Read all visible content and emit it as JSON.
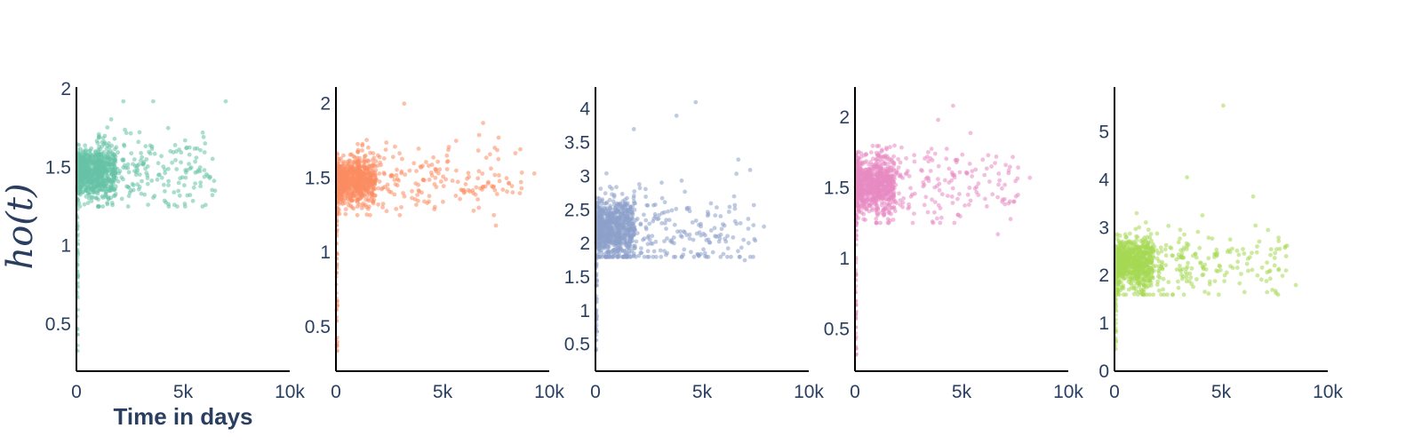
{
  "chart_data": {
    "type": "scatter",
    "ylabel": "ho(t)",
    "xlabel": "Time in days",
    "panels": [
      {
        "color": "#66c2a5",
        "xlim": [
          0,
          10000
        ],
        "ylim": [
          0.2,
          2.0
        ],
        "x_ticks": [
          {
            "value": 0,
            "label": "0"
          },
          {
            "value": 5000,
            "label": "5k"
          },
          {
            "value": 10000,
            "label": "10k"
          }
        ],
        "y_ticks": [
          {
            "value": 0.5,
            "label": "0.5"
          },
          {
            "value": 1,
            "label": "1"
          },
          {
            "value": 1.5,
            "label": "1.5"
          },
          {
            "value": 2,
            "label": "2"
          }
        ],
        "cluster": {
          "center": 1.47,
          "spread": 0.1,
          "min": 1.25,
          "max": 1.92,
          "max_x": 7000
        },
        "outliers": [
          [
            7000,
            1.92
          ],
          [
            6500,
            1.35
          ],
          [
            5300,
            1.58
          ],
          [
            4300,
            1.75
          ],
          [
            3600,
            1.92
          ],
          [
            2200,
            1.92
          ],
          [
            4600,
            1.26
          ]
        ],
        "base": 0.3
      },
      {
        "color": "#fc8d62",
        "xlim": [
          0,
          10000
        ],
        "ylim": [
          0.2,
          2.1
        ],
        "x_ticks": [
          {
            "value": 0,
            "label": "0"
          },
          {
            "value": 5000,
            "label": "5k"
          },
          {
            "value": 10000,
            "label": "10k"
          }
        ],
        "y_ticks": [
          {
            "value": 0.5,
            "label": "0.5"
          },
          {
            "value": 1,
            "label": "1"
          },
          {
            "value": 1.5,
            "label": "1.5"
          },
          {
            "value": 2,
            "label": "2"
          }
        ],
        "cluster": {
          "center": 1.48,
          "spread": 0.1,
          "min": 1.25,
          "max": 2.0,
          "max_x": 9300
        },
        "outliers": [
          [
            9300,
            1.53
          ],
          [
            8700,
            1.43
          ],
          [
            7500,
            1.18
          ],
          [
            6900,
            1.87
          ],
          [
            6700,
            1.3
          ],
          [
            6000,
            1.4
          ],
          [
            3200,
            2.0
          ],
          [
            5200,
            1.65
          ]
        ],
        "base": 0.3
      },
      {
        "color": "#8da0cb",
        "xlim": [
          0,
          10000
        ],
        "ylim": [
          0.1,
          4.3
        ],
        "x_ticks": [
          {
            "value": 0,
            "label": "0"
          },
          {
            "value": 5000,
            "label": "5k"
          },
          {
            "value": 10000,
            "label": "10k"
          }
        ],
        "y_ticks": [
          {
            "value": 0.5,
            "label": "0.5"
          },
          {
            "value": 1,
            "label": "1"
          },
          {
            "value": 1.5,
            "label": "1.5"
          },
          {
            "value": 2,
            "label": "2"
          },
          {
            "value": 2.5,
            "label": "2.5"
          },
          {
            "value": 3,
            "label": "3"
          },
          {
            "value": 3.5,
            "label": "3.5"
          },
          {
            "value": 4,
            "label": "4"
          }
        ],
        "cluster": {
          "center": 2.2,
          "spread": 0.28,
          "min": 1.8,
          "max": 3.4,
          "max_x": 8000
        },
        "outliers": [
          [
            4700,
            4.1
          ],
          [
            3800,
            3.9
          ],
          [
            1800,
            3.7
          ],
          [
            7900,
            2.25
          ],
          [
            7000,
            1.75
          ],
          [
            6500,
            2.7
          ],
          [
            6800,
            2.3
          ],
          [
            5200,
            2.05
          ]
        ],
        "base": 0.4
      },
      {
        "color": "#e78ac3",
        "xlim": [
          0,
          10000
        ],
        "ylim": [
          0.2,
          2.2
        ],
        "x_ticks": [
          {
            "value": 0,
            "label": "0"
          },
          {
            "value": 5000,
            "label": "5k"
          },
          {
            "value": 10000,
            "label": "10k"
          }
        ],
        "y_ticks": [
          {
            "value": 0.5,
            "label": "0.5"
          },
          {
            "value": 1,
            "label": "1"
          },
          {
            "value": 1.5,
            "label": "1.5"
          },
          {
            "value": 2,
            "label": "2"
          }
        ],
        "cluster": {
          "center": 1.52,
          "spread": 0.12,
          "min": 1.25,
          "max": 2.1,
          "max_x": 8200
        },
        "outliers": [
          [
            8200,
            1.57
          ],
          [
            6700,
            1.17
          ],
          [
            6400,
            1.65
          ],
          [
            6900,
            1.4
          ],
          [
            4600,
            2.08
          ],
          [
            3900,
            1.98
          ],
          [
            5300,
            1.45
          ]
        ],
        "base": 0.3
      },
      {
        "color": "#a6d854",
        "xlim": [
          0,
          10000
        ],
        "ylim": [
          0,
          5.9
        ],
        "x_ticks": [
          {
            "value": 0,
            "label": "0"
          },
          {
            "value": 5000,
            "label": "5k"
          },
          {
            "value": 10000,
            "label": "10k"
          }
        ],
        "y_ticks": [
          {
            "value": 0,
            "label": "0"
          },
          {
            "value": 1,
            "label": "1"
          },
          {
            "value": 2,
            "label": "2"
          },
          {
            "value": 3,
            "label": "3"
          },
          {
            "value": 4,
            "label": "4"
          },
          {
            "value": 5,
            "label": "5"
          }
        ],
        "cluster": {
          "center": 2.25,
          "spread": 0.3,
          "min": 1.6,
          "max": 3.5,
          "max_x": 8600
        },
        "outliers": [
          [
            5100,
            5.55
          ],
          [
            3400,
            4.05
          ],
          [
            6500,
            3.65
          ],
          [
            7200,
            2.95
          ],
          [
            7600,
            2.55
          ],
          [
            8500,
            1.8
          ],
          [
            7400,
            1.7
          ],
          [
            6700,
            2.0
          ]
        ],
        "base": 0.4
      }
    ]
  }
}
